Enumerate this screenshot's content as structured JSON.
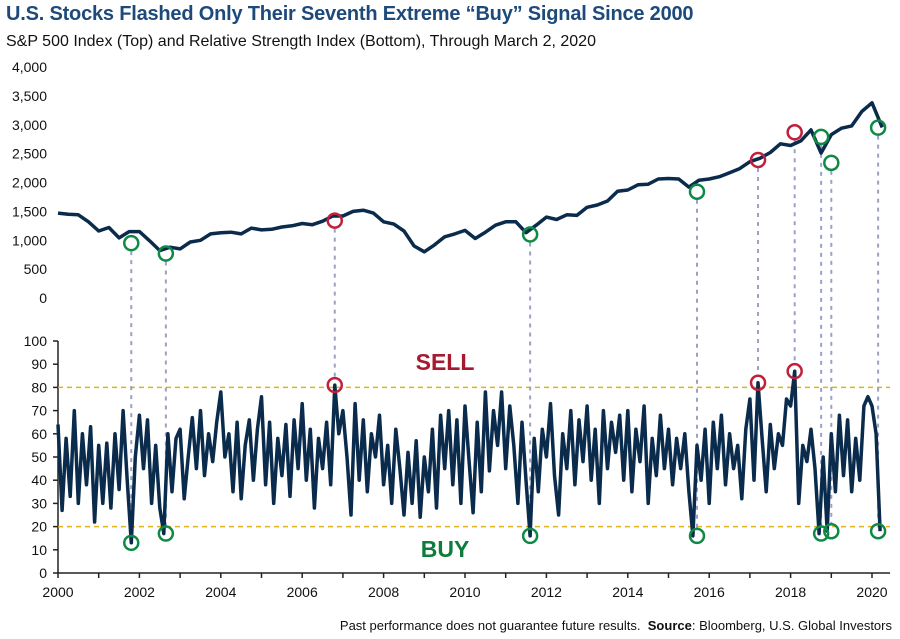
{
  "title": "U.S. Stocks Flashed Only Their Seventh Extreme “Buy” Signal Since 2000",
  "subtitle": "S&P 500 Index (Top) and Relative Strength Index (Bottom), Through March 2, 2020",
  "footer": {
    "disclaimer": "Past performance does not guarantee future results.",
    "source_label": "Source",
    "source_text": ": Bloomberg, U.S. Global Investors"
  },
  "colors": {
    "line": "#0a2b4c",
    "buy": "#0e8a45",
    "sell": "#c0203a",
    "threshold": "#e0b21c",
    "connector": "#9aa0c8",
    "sell_label": "#a6192e",
    "buy_label": "#0e7c3a"
  },
  "chart_data": [
    {
      "type": "line",
      "panel": "top",
      "ylim": [
        0,
        4000
      ],
      "yticks": [
        "0",
        "500",
        "1,000",
        "1,500",
        "2,000",
        "2,500",
        "3,000",
        "3,500",
        "4,000"
      ],
      "ytick_values": [
        0,
        500,
        1000,
        1500,
        2000,
        2500,
        3000,
        3500,
        4000
      ],
      "x_start": 2000,
      "x_step": 0.25,
      "values": [
        1470,
        1450,
        1440,
        1320,
        1160,
        1220,
        1040,
        1150,
        1150,
        990,
        820,
        880,
        850,
        970,
        1000,
        1110,
        1130,
        1140,
        1110,
        1210,
        1180,
        1190,
        1230,
        1250,
        1290,
        1270,
        1330,
        1420,
        1420,
        1500,
        1520,
        1470,
        1320,
        1280,
        1160,
        900,
        800,
        920,
        1060,
        1110,
        1170,
        1030,
        1140,
        1260,
        1320,
        1320,
        1130,
        1260,
        1400,
        1360,
        1440,
        1430,
        1570,
        1610,
        1680,
        1850,
        1870,
        1960,
        1970,
        2060,
        2070,
        2060,
        1920,
        2040,
        2060,
        2100,
        2170,
        2240,
        2360,
        2420,
        2520,
        2670,
        2640,
        2720,
        2910,
        2510,
        2830,
        2940,
        2980,
        3230,
        3380,
        2954
      ],
      "markers": [
        {
          "x": 2001.8,
          "y": 950,
          "signal": "buy"
        },
        {
          "x": 2002.65,
          "y": 770,
          "signal": "buy"
        },
        {
          "x": 2006.8,
          "y": 1340,
          "signal": "sell"
        },
        {
          "x": 2011.6,
          "y": 1100,
          "signal": "buy"
        },
        {
          "x": 2015.7,
          "y": 1840,
          "signal": "buy"
        },
        {
          "x": 2017.2,
          "y": 2390,
          "signal": "sell"
        },
        {
          "x": 2018.1,
          "y": 2870,
          "signal": "sell"
        },
        {
          "x": 2018.75,
          "y": 2790,
          "signal": "buy"
        },
        {
          "x": 2019.0,
          "y": 2340,
          "signal": "buy"
        },
        {
          "x": 2020.15,
          "y": 2950,
          "signal": "buy"
        }
      ]
    },
    {
      "type": "line",
      "panel": "bottom",
      "ylim": [
        0,
        100
      ],
      "yticks": [
        "0",
        "10",
        "20",
        "30",
        "40",
        "50",
        "60",
        "70",
        "80",
        "90",
        "100"
      ],
      "ytick_values": [
        0,
        10,
        20,
        30,
        40,
        50,
        60,
        70,
        80,
        90,
        100
      ],
      "xlim": [
        2000,
        2020.6
      ],
      "xticks": [
        "2000",
        "2002",
        "2004",
        "2006",
        "2008",
        "2010",
        "2012",
        "2014",
        "2016",
        "2018",
        "2020"
      ],
      "xtick_values": [
        2000,
        2002,
        2004,
        2006,
        2008,
        2010,
        2012,
        2014,
        2016,
        2018,
        2020
      ],
      "thresholds": [
        {
          "value": 80,
          "label": "SELL"
        },
        {
          "value": 20,
          "label": "BUY"
        }
      ],
      "x_start": 2000,
      "x_step": 0.1,
      "values": [
        64,
        27,
        58,
        33,
        70,
        30,
        60,
        38,
        63,
        22,
        55,
        30,
        56,
        28,
        60,
        36,
        70,
        40,
        13,
        50,
        68,
        45,
        66,
        30,
        55,
        28,
        17,
        60,
        35,
        58,
        62,
        32,
        50,
        67,
        45,
        70,
        42,
        60,
        48,
        65,
        78,
        50,
        60,
        35,
        65,
        32,
        55,
        66,
        40,
        62,
        76,
        38,
        65,
        30,
        58,
        42,
        64,
        33,
        66,
        45,
        73,
        40,
        62,
        28,
        58,
        45,
        65,
        38,
        81,
        60,
        70,
        50,
        25,
        73,
        40,
        66,
        35,
        60,
        50,
        68,
        38,
        55,
        30,
        62,
        45,
        25,
        52,
        30,
        57,
        24,
        50,
        35,
        62,
        28,
        68,
        45,
        70,
        38,
        66,
        30,
        72,
        48,
        26,
        65,
        35,
        78,
        44,
        70,
        55,
        78,
        45,
        72,
        55,
        30,
        65,
        40,
        16,
        58,
        35,
        62,
        50,
        73,
        42,
        25,
        60,
        45,
        70,
        38,
        66,
        48,
        72,
        40,
        62,
        30,
        70,
        45,
        65,
        52,
        68,
        40,
        70,
        35,
        62,
        48,
        72,
        30,
        58,
        42,
        68,
        45,
        62,
        38,
        58,
        45,
        60,
        35,
        16,
        55,
        40,
        62,
        30,
        65,
        45,
        68,
        38,
        60,
        45,
        55,
        32,
        62,
        75,
        40,
        82,
        58,
        35,
        64,
        45,
        60,
        55,
        75,
        72,
        87,
        30,
        55,
        48,
        62,
        45,
        17,
        50,
        18,
        60,
        35,
        68,
        42,
        66,
        35,
        58,
        40,
        72,
        76,
        72,
        60,
        18
      ],
      "markers": [
        {
          "x": 2001.8,
          "y": 13,
          "signal": "buy"
        },
        {
          "x": 2002.65,
          "y": 17,
          "signal": "buy"
        },
        {
          "x": 2006.8,
          "y": 81,
          "signal": "sell"
        },
        {
          "x": 2011.6,
          "y": 16,
          "signal": "buy"
        },
        {
          "x": 2015.7,
          "y": 16,
          "signal": "buy"
        },
        {
          "x": 2017.2,
          "y": 82,
          "signal": "sell"
        },
        {
          "x": 2018.1,
          "y": 87,
          "signal": "sell"
        },
        {
          "x": 2018.75,
          "y": 17,
          "signal": "buy"
        },
        {
          "x": 2019.0,
          "y": 18,
          "signal": "buy"
        },
        {
          "x": 2020.15,
          "y": 18,
          "signal": "buy"
        }
      ]
    }
  ]
}
